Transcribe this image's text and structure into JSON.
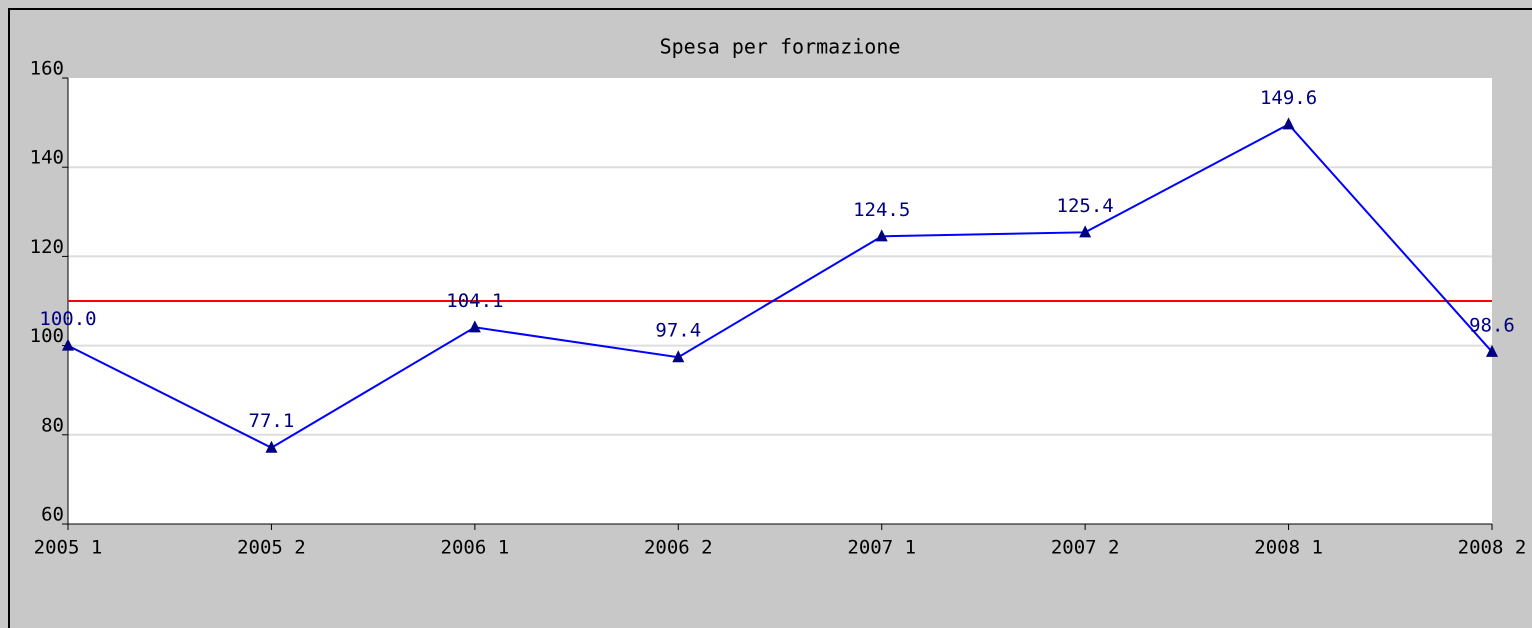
{
  "chart_data": {
    "type": "line",
    "title": "Spesa per formazione",
    "categories": [
      "2005 1",
      "2005 2",
      "2006 1",
      "2006 2",
      "2007 1",
      "2007 2",
      "2008 1",
      "2008 2"
    ],
    "series": [
      {
        "color": "#0000ff",
        "marker_color": "#000080",
        "values": [
          100,
          77.1,
          104.1,
          97.4,
          124.5,
          125.4,
          149.6,
          98.6
        ],
        "value_labels": [
          "100.0",
          "77.1",
          "104.1",
          "97.4",
          "124.5",
          "125.4",
          "149.6",
          "98.6"
        ]
      }
    ],
    "reference_line": {
      "value": 110,
      "color": "#ff0000"
    },
    "ylim": [
      60,
      160
    ],
    "yticks": [
      60,
      80,
      100,
      120,
      140,
      160
    ],
    "grid": true
  }
}
